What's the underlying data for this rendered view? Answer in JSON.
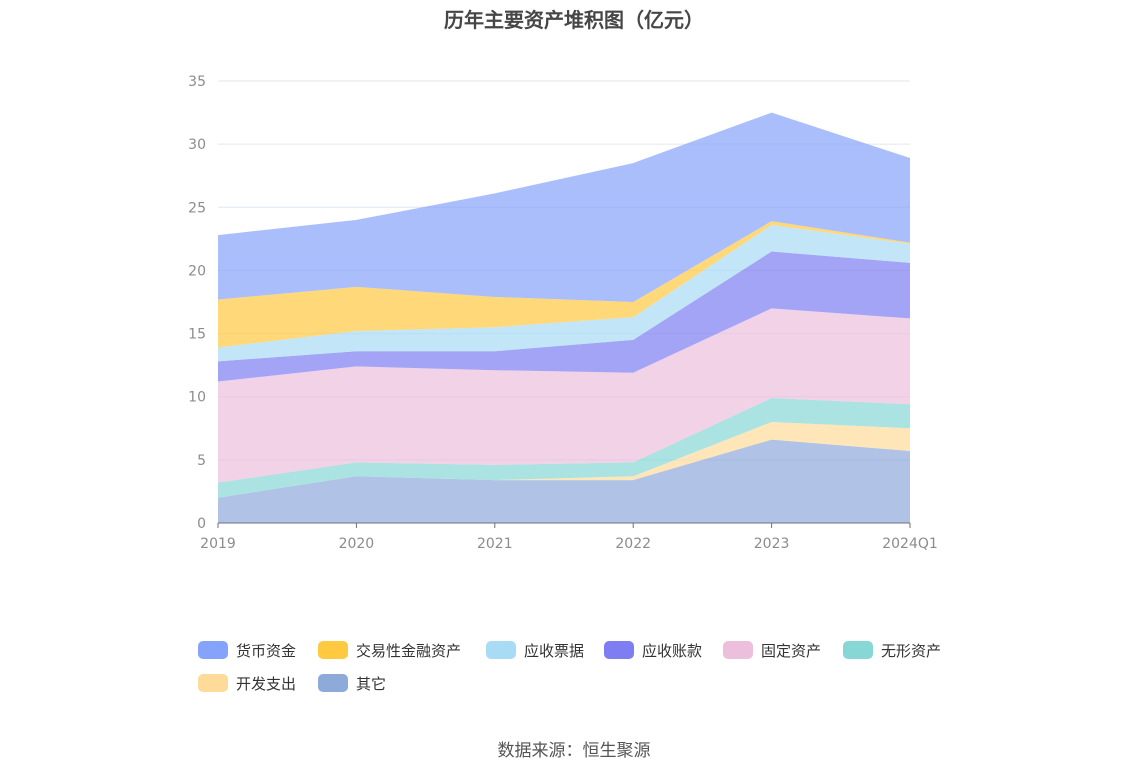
{
  "chart_data": {
    "type": "area",
    "title": "历年主要资产堆积图（亿元）",
    "x": [
      "2019",
      "2020",
      "2021",
      "2022",
      "2023",
      "2024Q1"
    ],
    "ylim": [
      0,
      35
    ],
    "yticks": [
      0,
      5,
      10,
      15,
      20,
      25,
      30,
      35
    ],
    "grid": true,
    "legend_position": "bottom",
    "stacked": true,
    "series": [
      {
        "name": "其它",
        "color": "#8eaadb",
        "values": [
          2.0,
          3.7,
          3.4,
          3.4,
          6.6,
          5.7
        ]
      },
      {
        "name": "开发支出",
        "color": "#ffdb9a",
        "values": [
          0.0,
          0.0,
          0.0,
          0.3,
          1.4,
          1.8
        ]
      },
      {
        "name": "无形资产",
        "color": "#87d7d7",
        "values": [
          1.2,
          1.1,
          1.2,
          1.1,
          1.9,
          1.9
        ]
      },
      {
        "name": "固定资产",
        "color": "#ecbfdd",
        "values": [
          8.0,
          7.6,
          7.5,
          7.1,
          7.1,
          6.8
        ]
      },
      {
        "name": "应收账款",
        "color": "#7e7ef2",
        "values": [
          1.6,
          1.2,
          1.5,
          2.6,
          4.5,
          4.4
        ]
      },
      {
        "name": "应收票据",
        "color": "#a8dcf5",
        "values": [
          1.1,
          1.6,
          1.9,
          1.8,
          2.1,
          1.5
        ]
      },
      {
        "name": "交易性金融资产",
        "color": "#ffc940",
        "values": [
          3.8,
          3.5,
          2.4,
          1.2,
          0.3,
          0.1
        ]
      },
      {
        "name": "货币资金",
        "color": "#86a3fb",
        "values": [
          5.1,
          5.3,
          8.2,
          11.0,
          8.6,
          6.7
        ]
      }
    ]
  },
  "legend_order": [
    "货币资金",
    "交易性金融资产",
    "应收票据",
    "应收账款",
    "固定资产",
    "无形资产",
    "开发支出",
    "其它"
  ],
  "source": "数据来源：恒生聚源"
}
